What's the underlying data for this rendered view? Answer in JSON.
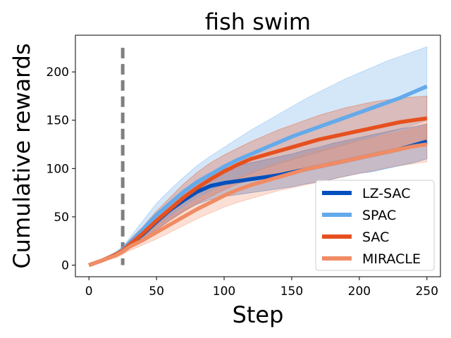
{
  "chart_data": {
    "type": "line",
    "title": "fish swim",
    "xlabel": "Step",
    "ylabel": "Cumulative rewards",
    "xlim": [
      -10,
      260
    ],
    "ylim": [
      -12,
      238
    ],
    "xticks": [
      0,
      50,
      100,
      150,
      200,
      250
    ],
    "yticks": [
      0,
      50,
      100,
      150,
      200
    ],
    "vline": {
      "x": 25,
      "color": "#808080",
      "style": "dashed"
    },
    "x": [
      0,
      10,
      20,
      25,
      30,
      40,
      50,
      60,
      70,
      80,
      90,
      100,
      110,
      120,
      130,
      140,
      150,
      160,
      170,
      180,
      190,
      200,
      210,
      220,
      230,
      240,
      250
    ],
    "series": [
      {
        "name": "LZ-SAC",
        "color": "#0050BE",
        "mean": [
          0,
          5,
          11,
          15,
          21,
          32,
          45,
          57,
          67,
          76,
          82,
          85,
          87,
          89,
          91,
          93,
          96,
          99,
          102,
          105,
          108,
          111,
          114,
          117,
          120,
          124,
          128
        ],
        "lower": [
          0,
          4,
          9,
          13,
          18,
          27,
          37,
          47,
          56,
          63,
          68,
          71,
          73,
          75,
          77,
          79,
          81,
          84,
          86,
          89,
          92,
          95,
          97,
          100,
          103,
          106,
          110
        ],
        "upper": [
          0,
          6,
          13,
          17,
          24,
          37,
          52,
          65,
          78,
          88,
          96,
          100,
          103,
          106,
          109,
          112,
          115,
          119,
          122,
          126,
          129,
          132,
          135,
          138,
          141,
          143,
          146
        ]
      },
      {
        "name": "SPAC",
        "color": "#64AAEB",
        "mean": [
          0,
          5,
          11,
          16,
          23,
          37,
          52,
          64,
          76,
          86,
          94,
          102,
          109,
          115,
          121,
          127,
          133,
          138,
          143,
          148,
          153,
          158,
          163,
          168,
          173,
          179,
          185
        ],
        "lower": [
          0,
          4,
          9,
          13,
          18,
          28,
          40,
          51,
          61,
          70,
          77,
          84,
          90,
          95,
          100,
          105,
          109,
          113,
          117,
          121,
          125,
          129,
          133,
          137,
          141,
          145,
          150
        ],
        "upper": [
          0,
          6,
          14,
          19,
          28,
          46,
          64,
          78,
          91,
          103,
          113,
          122,
          131,
          140,
          148,
          156,
          164,
          172,
          179,
          186,
          193,
          199,
          205,
          211,
          216,
          221,
          226
        ]
      },
      {
        "name": "SAC",
        "color": "#E6501E",
        "mean": [
          0,
          5,
          11,
          15,
          21,
          33,
          46,
          58,
          70,
          80,
          89,
          97,
          104,
          110,
          114,
          118,
          122,
          126,
          130,
          133,
          136,
          139,
          142,
          145,
          148,
          150,
          152
        ],
        "lower": [
          0,
          4,
          9,
          12,
          17,
          26,
          36,
          46,
          55,
          64,
          71,
          78,
          84,
          88,
          91,
          94,
          97,
          100,
          103,
          106,
          109,
          112,
          115,
          118,
          121,
          124,
          128
        ],
        "upper": [
          0,
          6,
          13,
          18,
          26,
          40,
          56,
          70,
          84,
          96,
          106,
          114,
          121,
          128,
          134,
          140,
          145,
          150,
          155,
          159,
          163,
          166,
          169,
          171,
          173,
          174,
          175
        ]
      },
      {
        "name": "MIRACLE",
        "color": "#F08C64",
        "mean": [
          0,
          5,
          10,
          14,
          19,
          26,
          34,
          42,
          50,
          58,
          65,
          72,
          78,
          83,
          87,
          91,
          95,
          99,
          102,
          105,
          108,
          111,
          114,
          117,
          120,
          123,
          125
        ],
        "lower": [
          0,
          4,
          8,
          11,
          15,
          21,
          27,
          34,
          41,
          48,
          54,
          60,
          65,
          69,
          73,
          77,
          80,
          83,
          86,
          89,
          92,
          95,
          98,
          101,
          103,
          105,
          107
        ],
        "upper": [
          0,
          6,
          12,
          17,
          23,
          31,
          41,
          50,
          59,
          68,
          76,
          84,
          90,
          96,
          101,
          106,
          110,
          115,
          119,
          122,
          126,
          129,
          132,
          135,
          138,
          141,
          144
        ]
      }
    ],
    "legend": {
      "placement": "bottom-right",
      "entries": [
        "LZ-SAC",
        "SPAC",
        "SAC",
        "MIRACLE"
      ]
    }
  }
}
